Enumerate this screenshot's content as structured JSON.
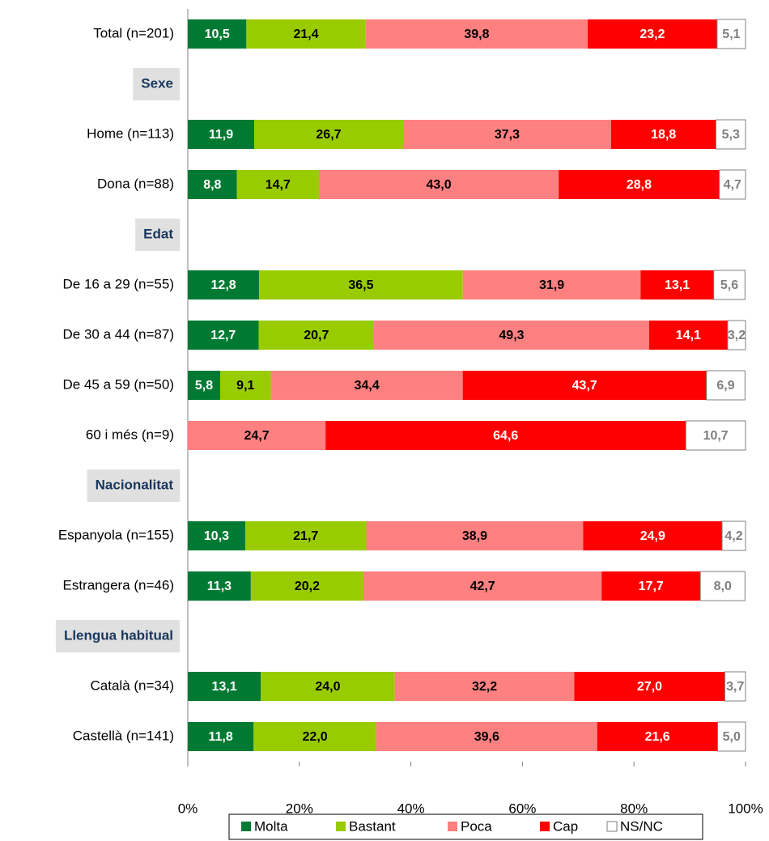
{
  "chart_data": {
    "type": "stacked-bar-horizontal",
    "categories": [
      "Total (n=201)",
      "Sexe",
      "Home (n=113)",
      "Dona (n=88)",
      "Edat",
      "De 16 a 29 (n=55)",
      "De 30 a 44 (n=87)",
      "De 45 a 59 (n=50)",
      "60 i més (n=9)",
      "Nacionalitat",
      "Espanyola (n=155)",
      "Estrangera (n=46)",
      "Llengua habitual",
      "Català (n=34)",
      "Castellà (n=141)"
    ],
    "series": [
      {
        "name": "Molta",
        "color": "#007a33",
        "values": [
          10.5,
          null,
          11.9,
          8.8,
          null,
          12.8,
          12.7,
          5.8,
          null,
          null,
          10.3,
          11.3,
          null,
          13.1,
          11.8
        ],
        "value_labels": [
          "10,5",
          null,
          "11,9",
          "8,8",
          null,
          "12,8",
          "12,7",
          "5,8",
          null,
          null,
          "10,3",
          "11,3",
          null,
          "13,1",
          "11,8"
        ]
      },
      {
        "name": "Bastant",
        "color": "#99cc00",
        "values": [
          21.4,
          null,
          26.7,
          14.7,
          null,
          36.5,
          20.7,
          9.1,
          null,
          null,
          21.7,
          20.2,
          null,
          24.0,
          22.0
        ],
        "value_labels": [
          "21,4",
          null,
          "26,7",
          "14,7",
          null,
          "36,5",
          "20,7",
          "9,1",
          null,
          null,
          "21,7",
          "20,2",
          null,
          "24,0",
          "22,0"
        ]
      },
      {
        "name": "Poca",
        "color": "#ff8080",
        "values": [
          39.8,
          null,
          37.3,
          43.0,
          null,
          31.9,
          49.3,
          34.4,
          24.7,
          null,
          38.9,
          42.7,
          null,
          32.2,
          39.6
        ],
        "value_labels": [
          "39,8",
          null,
          "37,3",
          "43,0",
          null,
          "31,9",
          "49,3",
          "34,4",
          "24,7",
          null,
          "38,9",
          "42,7",
          null,
          "32,2",
          "39,6"
        ]
      },
      {
        "name": "Cap",
        "color": "#ff0000",
        "values": [
          23.2,
          null,
          18.8,
          28.8,
          null,
          13.1,
          14.1,
          43.7,
          64.6,
          null,
          24.9,
          17.7,
          null,
          27.0,
          21.6
        ],
        "value_labels": [
          "23,2",
          null,
          "18,8",
          "28,8",
          null,
          "13,1",
          "14,1",
          "43,7",
          "64,6",
          null,
          "24,9",
          "17,7",
          null,
          "27,0",
          "21,6"
        ]
      },
      {
        "name": "NS/NC",
        "color": "#ffffff",
        "values": [
          5.1,
          null,
          5.3,
          4.7,
          null,
          5.6,
          3.2,
          6.9,
          10.7,
          null,
          4.2,
          8.0,
          null,
          3.7,
          5.0
        ],
        "value_labels": [
          "5,1",
          null,
          "5,3",
          "4,7",
          null,
          "5,6",
          "3,2",
          "6,9",
          "10,7",
          null,
          "4,2",
          "8,0",
          null,
          "3,7",
          "5,0"
        ]
      }
    ],
    "xlim": [
      0,
      100
    ],
    "xticks": [
      {
        "value": 0,
        "label": "0%"
      },
      {
        "value": 20,
        "label": "20%"
      },
      {
        "value": 40,
        "label": "40%"
      },
      {
        "value": 60,
        "label": "60%"
      },
      {
        "value": 80,
        "label": "80%"
      },
      {
        "value": 100,
        "label": "100%"
      }
    ],
    "legend": "bottom"
  }
}
